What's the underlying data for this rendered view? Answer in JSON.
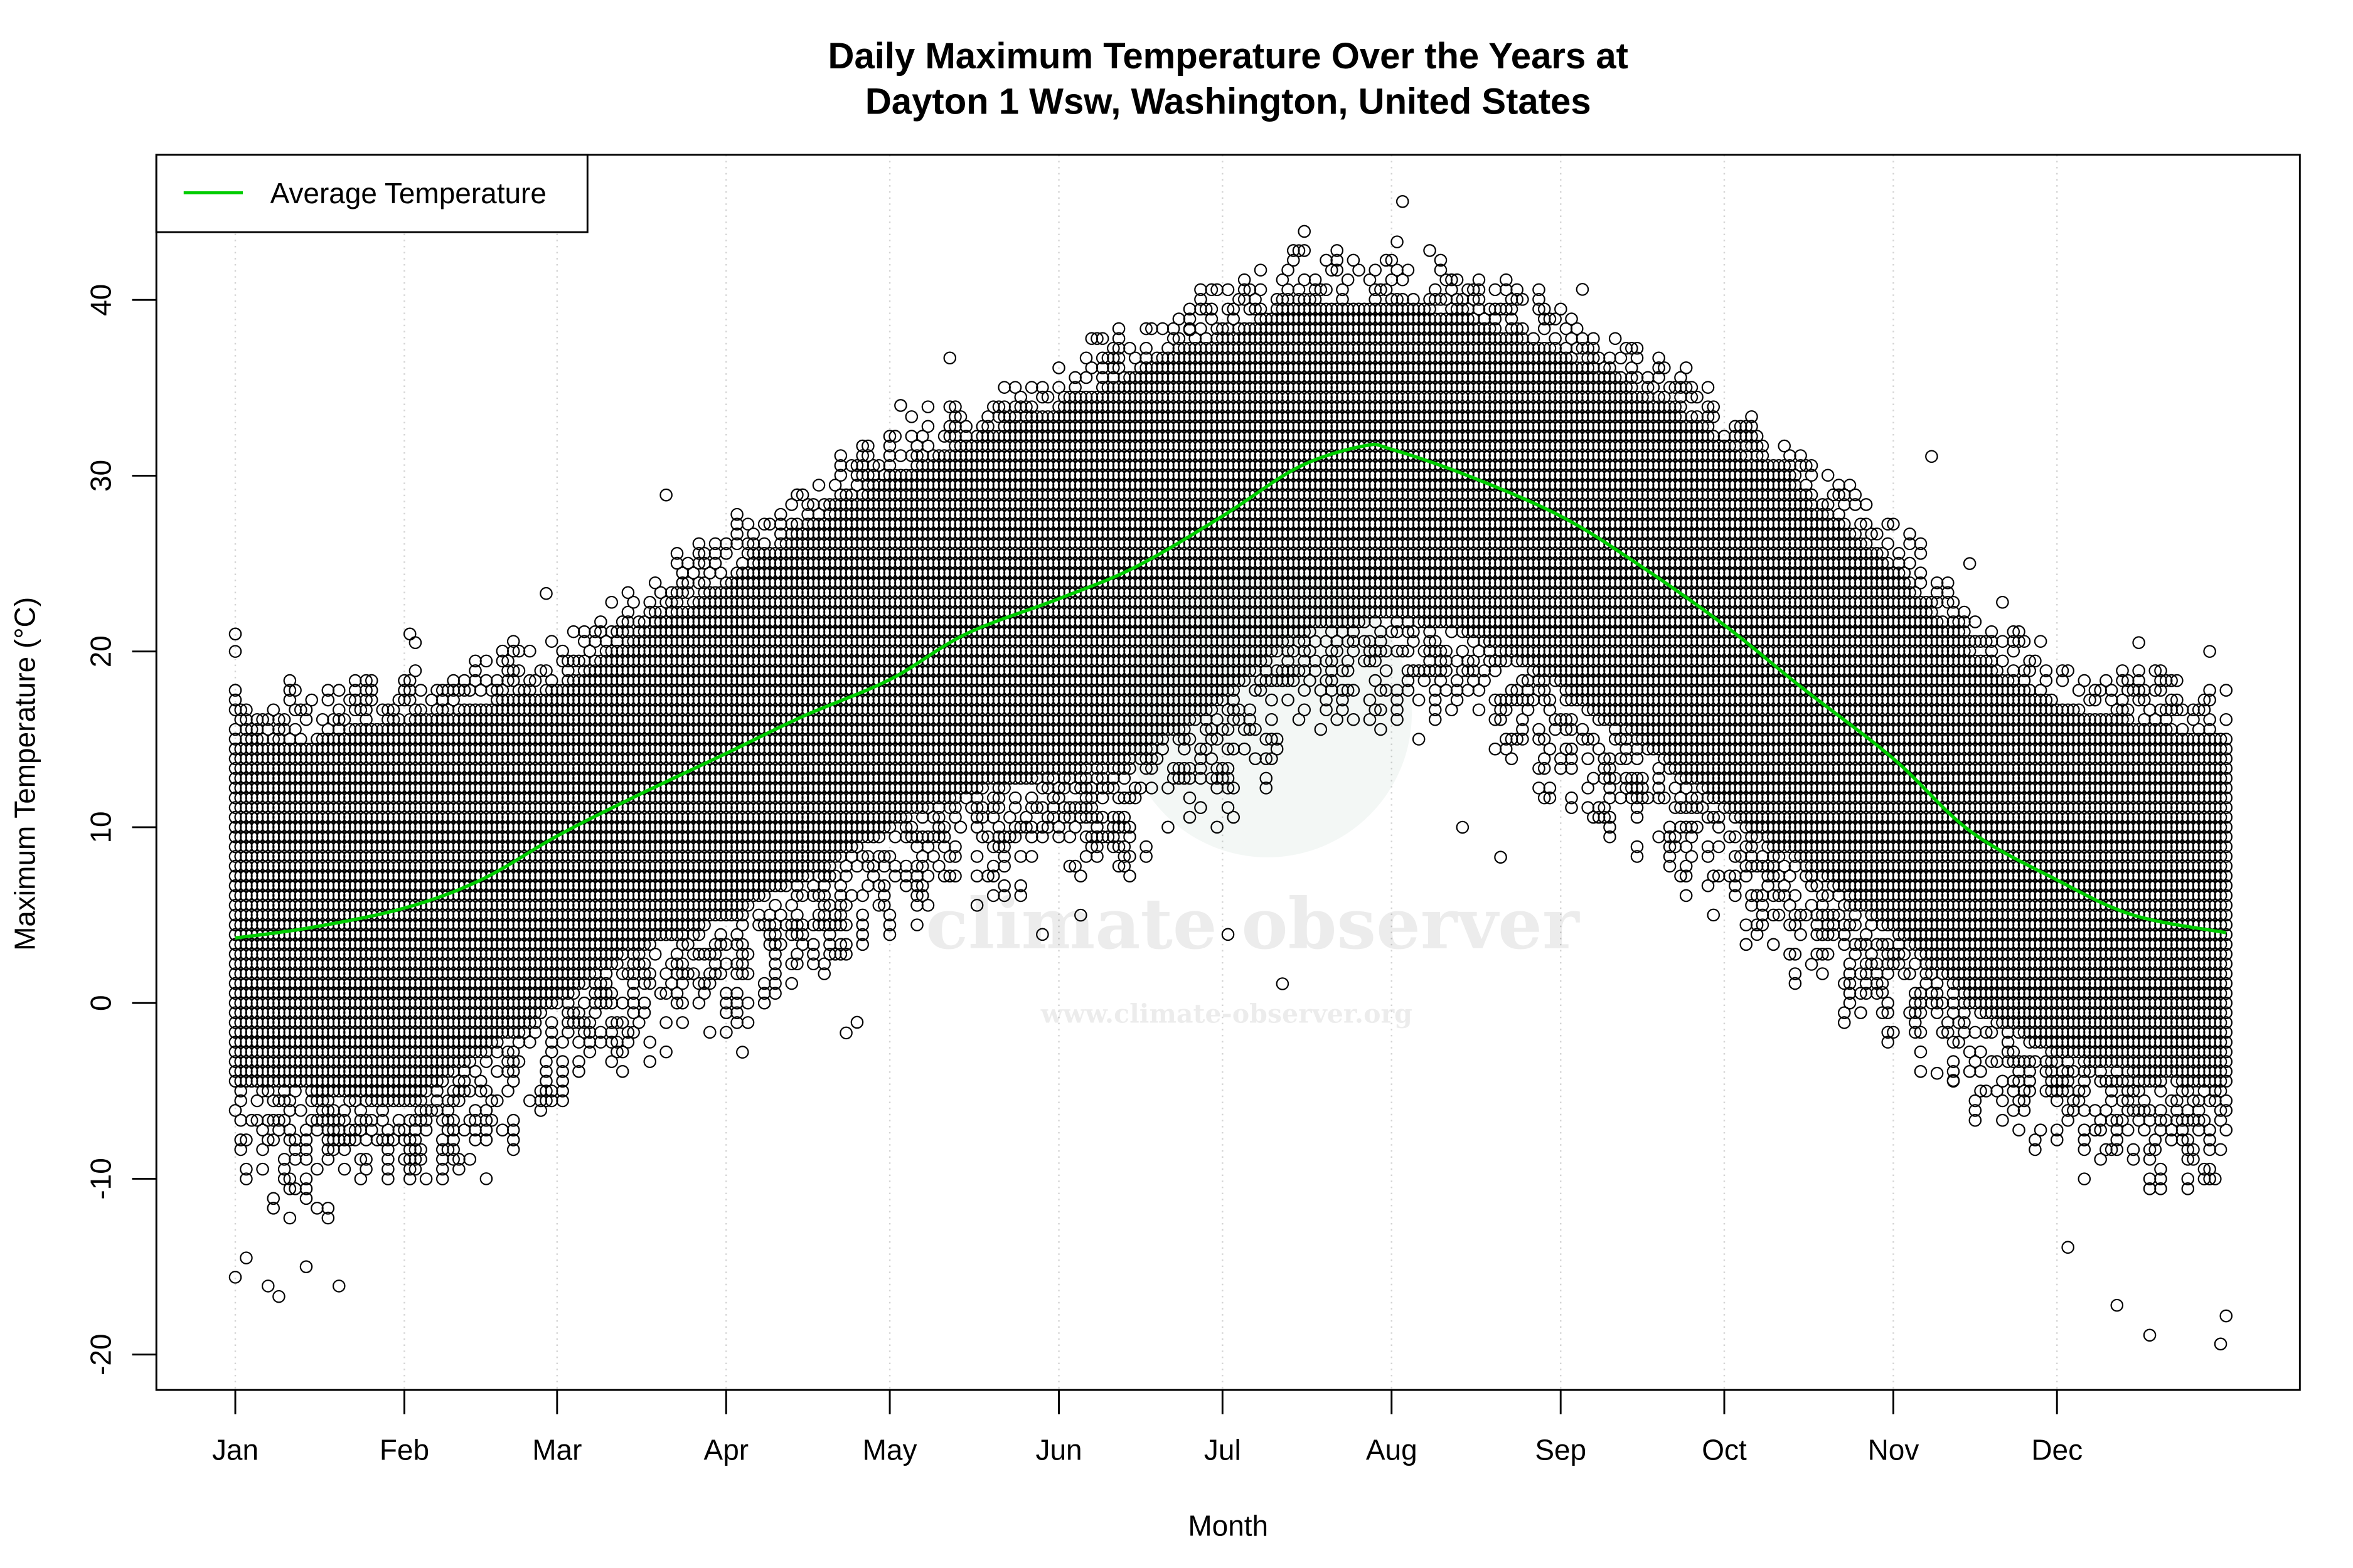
{
  "chart_data": {
    "type": "scatter",
    "title_lines": [
      "Daily Maximum Temperature Over the Years at",
      "Dayton 1 Wsw, Washington, United States"
    ],
    "xlabel": "Month",
    "ylabel": "Maximum Temperature (°C)",
    "x_unit": "day of year",
    "xlim": [
      1,
      366
    ],
    "ylim": [
      -22,
      48
    ],
    "x_ticks": [
      {
        "day": 1,
        "label": "Jan"
      },
      {
        "day": 32,
        "label": "Feb"
      },
      {
        "day": 60,
        "label": "Mar"
      },
      {
        "day": 91,
        "label": "Apr"
      },
      {
        "day": 121,
        "label": "May"
      },
      {
        "day": 152,
        "label": "Jun"
      },
      {
        "day": 182,
        "label": "Jul"
      },
      {
        "day": 213,
        "label": "Aug"
      },
      {
        "day": 244,
        "label": "Sep"
      },
      {
        "day": 274,
        "label": "Oct"
      },
      {
        "day": 305,
        "label": "Nov"
      },
      {
        "day": 335,
        "label": "Dec"
      }
    ],
    "y_ticks": [
      -20,
      -10,
      0,
      10,
      20,
      30,
      40
    ],
    "grid": "vertical dotted at month ticks",
    "legend": {
      "position": "top-left",
      "entries": [
        {
          "label": "Average Temperature",
          "color": "#00cc00"
        }
      ]
    },
    "average_series": {
      "name": "Average Temperature",
      "color": "#00cc00",
      "points": [
        [
          1,
          3.7
        ],
        [
          15,
          4.3
        ],
        [
          32,
          5.4
        ],
        [
          46,
          7.0
        ],
        [
          60,
          9.5
        ],
        [
          74,
          11.7
        ],
        [
          91,
          14.2
        ],
        [
          105,
          16.3
        ],
        [
          121,
          18.4
        ],
        [
          135,
          21.0
        ],
        [
          152,
          23.0
        ],
        [
          166,
          24.8
        ],
        [
          182,
          27.7
        ],
        [
          196,
          30.5
        ],
        [
          208,
          31.7
        ],
        [
          213,
          31.5
        ],
        [
          227,
          30.0
        ],
        [
          244,
          27.7
        ],
        [
          258,
          25.0
        ],
        [
          274,
          21.5
        ],
        [
          288,
          18.0
        ],
        [
          305,
          13.9
        ],
        [
          319,
          9.8
        ],
        [
          335,
          7.0
        ],
        [
          349,
          5.0
        ],
        [
          366,
          4.0
        ]
      ]
    },
    "daily_points_envelope": {
      "description_step_c": 0.556,
      "days": [
        1,
        15,
        32,
        46,
        60,
        74,
        91,
        105,
        121,
        135,
        152,
        166,
        182,
        196,
        213,
        227,
        244,
        258,
        274,
        288,
        305,
        319,
        335,
        349,
        366
      ],
      "low": [
        -5,
        -5,
        -6,
        -3,
        0,
        3,
        5,
        7,
        10,
        12,
        13,
        14,
        17,
        21,
        22,
        21,
        18,
        15,
        11,
        8,
        4,
        0,
        -3,
        -4,
        -5
      ],
      "high": [
        15,
        15,
        16,
        17,
        18,
        21,
        24,
        27,
        30,
        32,
        34,
        36,
        38,
        40,
        40,
        39,
        37,
        35,
        32,
        29,
        25,
        20,
        17,
        16,
        15
      ]
    },
    "outlier_points": [
      [
        1,
        21
      ],
      [
        1,
        20
      ],
      [
        1,
        -15.6
      ],
      [
        3,
        -14.5
      ],
      [
        7,
        -16.1
      ],
      [
        9,
        -16.7
      ],
      [
        14,
        -15
      ],
      [
        20,
        -16.1
      ],
      [
        33,
        21
      ],
      [
        34,
        20.5
      ],
      [
        47,
        -10
      ],
      [
        58,
        23.3
      ],
      [
        80,
        28.9
      ],
      [
        94,
        -2.8
      ],
      [
        113,
        -1.7
      ],
      [
        115,
        -1.1
      ],
      [
        123,
        34
      ],
      [
        132,
        36.7
      ],
      [
        149,
        3.9
      ],
      [
        156,
        5
      ],
      [
        176,
        38.3
      ],
      [
        183,
        3.9
      ],
      [
        193,
        1.1
      ],
      [
        196,
        42.8
      ],
      [
        197,
        43.9
      ],
      [
        214,
        43.3
      ],
      [
        215,
        45.6
      ],
      [
        226,
        10
      ],
      [
        233,
        8.3
      ],
      [
        248,
        40.6
      ],
      [
        280,
        3.9
      ],
      [
        290,
        2.2
      ],
      [
        303,
        0.6
      ],
      [
        312,
        31.1
      ],
      [
        313,
        -4
      ],
      [
        316,
        -4.4
      ],
      [
        319,
        25
      ],
      [
        325,
        22.8
      ],
      [
        337,
        -13.9
      ],
      [
        346,
        -17.2
      ],
      [
        350,
        20.5
      ],
      [
        352,
        -18.9
      ],
      [
        363,
        20
      ],
      [
        365,
        -19.4
      ],
      [
        366,
        -17.8
      ]
    ],
    "marker": "open circle",
    "colors": {
      "points": "#000000",
      "average": "#00cc00",
      "grid": "#d3d3d3"
    }
  },
  "watermark": {
    "name": "climate observer",
    "url": "www.climate-observer.org"
  }
}
